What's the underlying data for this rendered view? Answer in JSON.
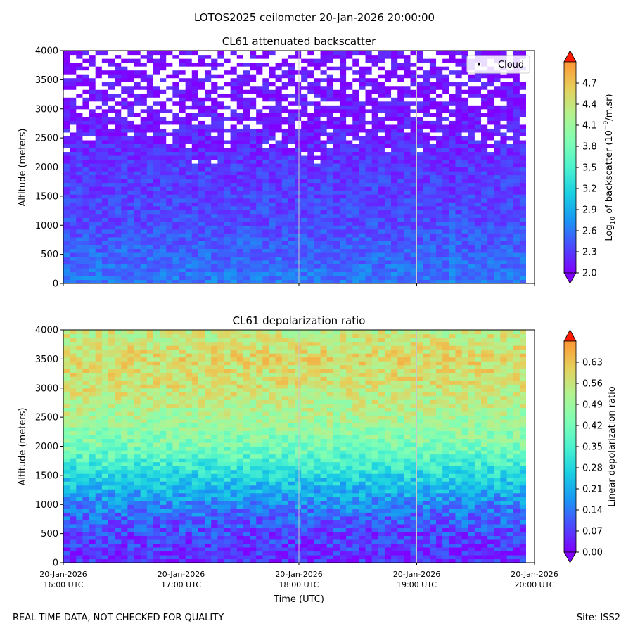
{
  "figure": {
    "suptitle": "LOTOS2025 ceilometer 20-Jan-2026 20:00:00",
    "footer_left": "REAL TIME DATA, NOT CHECKED FOR QUALITY",
    "footer_right": "Site: ISS2"
  },
  "chart_data": [
    {
      "type": "heatmap",
      "title": "CL61 attenuated backscatter",
      "ylabel": "Altitude (meters)",
      "xlabel": "",
      "x_range": [
        "20-Jan-2026 16:00 UTC",
        "20-Jan-2026 20:00 UTC"
      ],
      "ylim": [
        0,
        4000
      ],
      "yticks": [
        0,
        500,
        1000,
        1500,
        2000,
        2500,
        3000,
        3500,
        4000
      ],
      "xticks": [],
      "colormap": "rainbow",
      "colorbar": {
        "label_main": "Log",
        "label_sub": "10",
        "label_mid": " of backscatter (10",
        "label_sup": "−9",
        "label_end": "/m.sr)",
        "range": [
          2.0,
          5.0
        ],
        "ticks": [
          "2.0",
          "2.3",
          "2.6",
          "2.9",
          "3.2",
          "3.5",
          "3.8",
          "4.1",
          "4.4",
          "4.7"
        ]
      },
      "legend": {
        "entries": [
          "Cloud"
        ],
        "placement": "top-right"
      },
      "pattern": [
        {
          "altitude": 0,
          "value": 2.55
        },
        {
          "altitude": 500,
          "value": 2.45
        },
        {
          "altitude": 1000,
          "value": 2.35
        },
        {
          "altitude": 1500,
          "value": 2.3
        },
        {
          "altitude": 2000,
          "value": 2.25
        },
        {
          "altitude": 2500,
          "value": 2.15
        },
        {
          "altitude": 3000,
          "value": 2.1
        },
        {
          "altitude": 4000,
          "value": 2.05
        }
      ],
      "missing_data_above": 2000,
      "grid": "vertical-only"
    },
    {
      "type": "heatmap",
      "title": "CL61 depolarization ratio",
      "ylabel": "Altitude (meters)",
      "xlabel": "Time (UTC)",
      "x_range": [
        "20-Jan-2026 16:00 UTC",
        "20-Jan-2026 20:00 UTC"
      ],
      "ylim": [
        0,
        4000
      ],
      "yticks": [
        0,
        500,
        1000,
        1500,
        2000,
        2500,
        3000,
        3500,
        4000
      ],
      "xticks": [
        {
          "line1": "20-Jan-2026",
          "line2": "16:00 UTC"
        },
        {
          "line1": "20-Jan-2026",
          "line2": "17:00 UTC"
        },
        {
          "line1": "20-Jan-2026",
          "line2": "18:00 UTC"
        },
        {
          "line1": "20-Jan-2026",
          "line2": "19:00 UTC"
        },
        {
          "line1": "20-Jan-2026",
          "line2": "20:00 UTC"
        }
      ],
      "colormap": "rainbow",
      "colorbar": {
        "label": "Linear depolarization ratio",
        "range": [
          0.0,
          0.7
        ],
        "ticks": [
          "0.00",
          "0.07",
          "0.14",
          "0.21",
          "0.28",
          "0.35",
          "0.42",
          "0.49",
          "0.56",
          "0.63"
        ]
      },
      "pattern": [
        {
          "altitude": 0,
          "value": 0.04
        },
        {
          "altitude": 500,
          "value": 0.07
        },
        {
          "altitude": 1000,
          "value": 0.14
        },
        {
          "altitude": 1500,
          "value": 0.25
        },
        {
          "altitude": 2000,
          "value": 0.38
        },
        {
          "altitude": 2500,
          "value": 0.45
        },
        {
          "altitude": 3000,
          "value": 0.5
        },
        {
          "altitude": 3500,
          "value": 0.52
        },
        {
          "altitude": 4000,
          "value": 0.48
        }
      ],
      "grid": "vertical-only"
    }
  ]
}
